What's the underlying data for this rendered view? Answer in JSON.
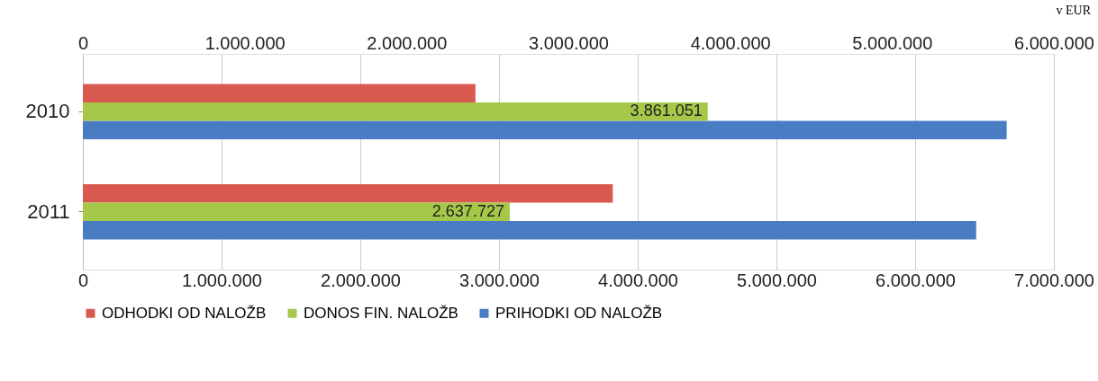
{
  "chart_data": {
    "type": "bar",
    "orientation": "horizontal",
    "categories": [
      "2010",
      "2011"
    ],
    "series": [
      {
        "name": "ODHODKI OD NALOŽB",
        "color": "#d9584f",
        "values": [
          2830000,
          3820000
        ]
      },
      {
        "name": "DONOS FIN. NALOŽB",
        "color": "#a6c84a",
        "values": [
          3861051,
          2637727
        ],
        "axis": "x2",
        "value_labels": [
          "3.861.051",
          "2.637.727"
        ]
      },
      {
        "name": "PRIHODKI OD NALOŽB",
        "color": "#4a7cc4",
        "values": [
          6660000,
          6440000
        ]
      }
    ],
    "xlim": [
      0,
      7000000
    ],
    "xticks": [
      0,
      {
        "value": 1000000,
        "label": "1.000.000"
      },
      {
        "value": 2000000,
        "label": "2.000.000"
      },
      {
        "value": 3000000,
        "label": "3.000.000"
      },
      {
        "value": 4000000,
        "label": "4.000.000"
      },
      {
        "value": 5000000,
        "label": "5.000.000"
      },
      {
        "value": 6000000,
        "label": "6.000.000"
      },
      {
        "value": 7000000,
        "label": "7.000.000"
      }
    ],
    "x2lim": [
      0,
      6000000
    ],
    "x2ticks": [
      0,
      {
        "value": 1000000,
        "label": "1.000.000"
      },
      {
        "value": 2000000,
        "label": "2.000.000"
      },
      {
        "value": 3000000,
        "label": "3.000.000"
      },
      {
        "value": 4000000,
        "label": "4.000.000"
      },
      {
        "value": 5000000,
        "label": "5.000.000"
      },
      {
        "value": 6000000,
        "label": "6.000.000"
      }
    ],
    "annotations": [
      "v EUR"
    ],
    "grid": "x",
    "legend": "bottom"
  }
}
